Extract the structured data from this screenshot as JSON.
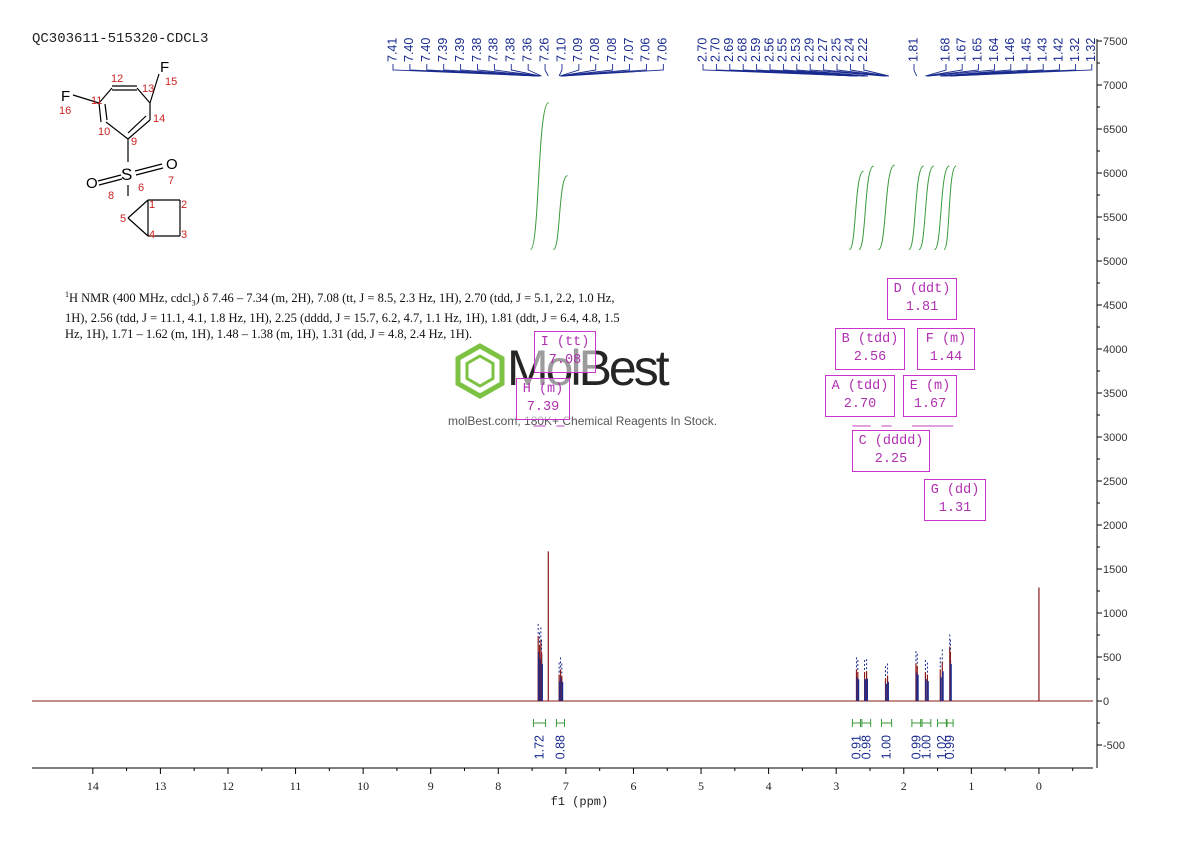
{
  "sample_id": "QC303611-515320-CDCL3",
  "nmr_description": {
    "nucleus_sup": "1",
    "text_1": "H NMR (400 MHz, cdcl",
    "solvent_sub": "3",
    "text_2": ") δ 7.46 – 7.34 (m, 2H), 7.08 (tt, J = 8.5, 2.3 Hz, 1H), 2.70 (tdd, J = 5.1, 2.2, 1.0 Hz, 1H), 2.56 (tdd, J = 11.1, 4.1, 1.8 Hz, 1H), 2.25 (dddd, J = 15.7, 6.2, 4.7, 1.1 Hz, 1H), 1.81 (ddt, J = 6.4, 4.8, 1.5 Hz, 1H), 1.71 – 1.62 (m, 1H), 1.48 – 1.38 (m, 1H), 1.31 (dd, J = 4.8, 2.4 Hz, 1H)."
  },
  "watermark": {
    "brand": "MolBest",
    "tagline": "molBest.com, 180K+ Chemical Reagents In Stock."
  },
  "structure": {
    "atoms": [
      {
        "label": "F",
        "number": "15"
      },
      {
        "label": "F",
        "number": "16"
      },
      {
        "label": "S",
        "number": "6"
      },
      {
        "label": "O",
        "number": "7"
      },
      {
        "label": "O",
        "number": "8"
      }
    ],
    "atom_numbers": [
      "1",
      "2",
      "3",
      "4",
      "5",
      "9",
      "10",
      "11",
      "12",
      "13",
      "14"
    ]
  },
  "multiplets": [
    {
      "letter": "A",
      "type": "tdd",
      "shift": "2.70"
    },
    {
      "letter": "B",
      "type": "tdd",
      "shift": "2.56"
    },
    {
      "letter": "C",
      "type": "dddd",
      "shift": "2.25"
    },
    {
      "letter": "D",
      "type": "ddt",
      "shift": "1.81"
    },
    {
      "letter": "E",
      "type": "m",
      "shift": "1.67"
    },
    {
      "letter": "F",
      "type": "m",
      "shift": "1.44"
    },
    {
      "letter": "G",
      "type": "dd",
      "shift": "1.31"
    },
    {
      "letter": "H",
      "type": "m",
      "shift": "7.39"
    },
    {
      "letter": "I",
      "type": "tt",
      "shift": "7.08"
    }
  ],
  "chart_data": {
    "type": "line",
    "xlabel": "f1 (ppm)",
    "xlim": [
      14.9,
      -0.8
    ],
    "x_ticks": [
      14,
      13,
      12,
      11,
      10,
      9,
      8,
      7,
      6,
      5,
      4,
      3,
      2,
      1,
      0
    ],
    "ylim": [
      -750,
      7500
    ],
    "y_ticks": [
      -500,
      0,
      500,
      1000,
      1500,
      2000,
      2500,
      3000,
      3500,
      4000,
      4500,
      5000,
      5500,
      6000,
      6500,
      7000,
      7500
    ],
    "peaks": [
      {
        "ppm": 7.41,
        "height": 740
      },
      {
        "ppm": 7.39,
        "height": 640
      },
      {
        "ppm": 7.37,
        "height": 700
      },
      {
        "ppm": 7.36,
        "height": 560
      },
      {
        "ppm": 7.26,
        "height": 1700
      },
      {
        "ppm": 7.1,
        "height": 300
      },
      {
        "ppm": 7.08,
        "height": 360
      },
      {
        "ppm": 7.06,
        "height": 290
      },
      {
        "ppm": 2.7,
        "height": 360
      },
      {
        "ppm": 2.68,
        "height": 330
      },
      {
        "ppm": 2.58,
        "height": 330
      },
      {
        "ppm": 2.55,
        "height": 340
      },
      {
        "ppm": 2.27,
        "height": 260
      },
      {
        "ppm": 2.24,
        "height": 290
      },
      {
        "ppm": 1.82,
        "height": 430
      },
      {
        "ppm": 1.8,
        "height": 400
      },
      {
        "ppm": 1.68,
        "height": 330
      },
      {
        "ppm": 1.65,
        "height": 300
      },
      {
        "ppm": 1.46,
        "height": 360
      },
      {
        "ppm": 1.43,
        "height": 450
      },
      {
        "ppm": 1.32,
        "height": 620
      },
      {
        "ppm": 1.31,
        "height": 560
      },
      {
        "ppm": 0.0,
        "height": 1290
      }
    ],
    "peak_labels": [
      {
        "label": "7.41",
        "ppm": 7.41
      },
      {
        "label": "7.40",
        "ppm": 7.4
      },
      {
        "label": "7.40",
        "ppm": 7.4
      },
      {
        "label": "7.39",
        "ppm": 7.39
      },
      {
        "label": "7.39",
        "ppm": 7.39
      },
      {
        "label": "7.38",
        "ppm": 7.38
      },
      {
        "label": "7.38",
        "ppm": 7.38
      },
      {
        "label": "7.38",
        "ppm": 7.38
      },
      {
        "label": "7.36",
        "ppm": 7.36
      },
      {
        "label": "7.26",
        "ppm": 7.26
      },
      {
        "label": "7.10",
        "ppm": 7.1
      },
      {
        "label": "7.09",
        "ppm": 7.09
      },
      {
        "label": "7.08",
        "ppm": 7.08
      },
      {
        "label": "7.08",
        "ppm": 7.08
      },
      {
        "label": "7.07",
        "ppm": 7.07
      },
      {
        "label": "7.06",
        "ppm": 7.06
      },
      {
        "label": "7.06",
        "ppm": 7.06
      },
      {
        "label": "2.70",
        "ppm": 2.7
      },
      {
        "label": "2.70",
        "ppm": 2.7
      },
      {
        "label": "2.69",
        "ppm": 2.69
      },
      {
        "label": "2.68",
        "ppm": 2.68
      },
      {
        "label": "2.59",
        "ppm": 2.59
      },
      {
        "label": "2.56",
        "ppm": 2.56
      },
      {
        "label": "2.55",
        "ppm": 2.55
      },
      {
        "label": "2.53",
        "ppm": 2.53
      },
      {
        "label": "2.29",
        "ppm": 2.29
      },
      {
        "label": "2.27",
        "ppm": 2.27
      },
      {
        "label": "2.25",
        "ppm": 2.25
      },
      {
        "label": "2.24",
        "ppm": 2.24
      },
      {
        "label": "2.22",
        "ppm": 2.22
      },
      {
        "label": "1.81",
        "ppm": 1.81
      },
      {
        "label": "1.68",
        "ppm": 1.68
      },
      {
        "label": "1.67",
        "ppm": 1.67
      },
      {
        "label": "1.65",
        "ppm": 1.65
      },
      {
        "label": "1.64",
        "ppm": 1.64
      },
      {
        "label": "1.46",
        "ppm": 1.46
      },
      {
        "label": "1.45",
        "ppm": 1.45
      },
      {
        "label": "1.43",
        "ppm": 1.43
      },
      {
        "label": "1.42",
        "ppm": 1.42
      },
      {
        "label": "1.32",
        "ppm": 1.32
      },
      {
        "label": "1.32",
        "ppm": 1.32
      }
    ],
    "integrals": [
      {
        "value": "1.72",
        "from": 7.48,
        "to": 7.3,
        "curve_top": 6800,
        "curve_bottom": 5130
      },
      {
        "value": "0.88",
        "from": 7.14,
        "to": 7.02,
        "curve_top": 5970,
        "curve_bottom": 5130
      },
      {
        "value": "0.91",
        "from": 2.76,
        "to": 2.64,
        "curve_top": 6020,
        "curve_bottom": 5130
      },
      {
        "value": "0.98",
        "from": 2.62,
        "to": 2.49,
        "curve_top": 6080,
        "curve_bottom": 5130
      },
      {
        "value": "1.00",
        "from": 2.33,
        "to": 2.18,
        "curve_top": 6090,
        "curve_bottom": 5130
      },
      {
        "value": "0.99",
        "from": 1.88,
        "to": 1.75,
        "curve_top": 6080,
        "curve_bottom": 5130
      },
      {
        "value": "1.00",
        "from": 1.73,
        "to": 1.6,
        "curve_top": 6080,
        "curve_bottom": 5130
      },
      {
        "value": "1.02",
        "from": 1.5,
        "to": 1.37,
        "curve_top": 6080,
        "curve_bottom": 5130
      },
      {
        "value": "0.99",
        "from": 1.36,
        "to": 1.27,
        "curve_top": 6080,
        "curve_bottom": 5130
      }
    ]
  }
}
